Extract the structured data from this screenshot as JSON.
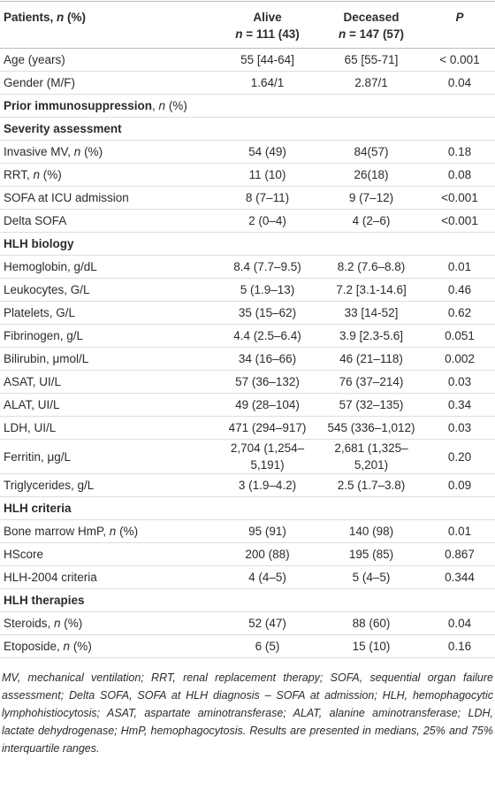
{
  "table": {
    "header": [
      [
        [
          {
            "t": "Patients, "
          },
          {
            "i": "n"
          },
          {
            "t": " (%)"
          }
        ]
      ],
      [
        "Alive",
        [
          {
            "i": "n"
          },
          {
            "t": " = 111 (43)"
          }
        ]
      ],
      [
        "Deceased",
        [
          {
            "i": "n"
          },
          {
            "t": " = 147 (57)"
          }
        ]
      ],
      [
        [
          {
            "i": "P"
          }
        ]
      ]
    ],
    "rows": [
      [
        "Age (years)",
        "55 [44-64]",
        "65 [55-71]",
        "< 0.001"
      ],
      [
        "Gender (M/F)",
        "1.64/1",
        "2.87/1",
        "0.04"
      ],
      [
        [
          {
            "b": "Prior immunosuppression"
          },
          {
            "t": ", "
          },
          {
            "i": "n"
          },
          {
            "t": " (%)"
          }
        ]
      ],
      [
        "Severity assessment"
      ],
      [
        [
          {
            "t": "Invasive MV, "
          },
          {
            "i": "n"
          },
          {
            "t": " (%)"
          }
        ],
        "54 (49)",
        "84(57)",
        "0.18"
      ],
      [
        [
          {
            "t": "RRT, "
          },
          {
            "i": "n"
          },
          {
            "t": " (%)"
          }
        ],
        "11 (10)",
        "26(18)",
        "0.08"
      ],
      [
        "SOFA at ICU admission",
        "8 (7–11)",
        "9 (7–12)",
        "<0.001"
      ],
      [
        "Delta SOFA",
        "2 (0–4)",
        "4 (2–6)",
        "<0.001"
      ],
      [
        "HLH biology"
      ],
      [
        "Hemoglobin, g/dL",
        "8.4 (7.7–9.5)",
        "8.2 (7.6–8.8)",
        "0.01"
      ],
      [
        "Leukocytes, G/L",
        "5 (1.9–13)",
        "7.2 [3.1-14.6]",
        "0.46"
      ],
      [
        "Platelets, G/L",
        "35 (15–62)",
        "33 [14-52]",
        "0.62"
      ],
      [
        "Fibrinogen, g/L",
        "4.4 (2.5–6.4)",
        "3.9 [2.3-5.6]",
        "0.051"
      ],
      [
        "Bilirubin, μmol/L",
        "34 (16–66)",
        "46 (21–118)",
        "0.002"
      ],
      [
        "ASAT, UI/L",
        "57 (36–132)",
        "76 (37–214)",
        "0.03"
      ],
      [
        "ALAT, UI/L",
        "49 (28–104)",
        "57 (32–135)",
        "0.34"
      ],
      [
        "LDH, UI/L",
        "471 (294–917)",
        "545 (336–1,012)",
        "0.03"
      ],
      [
        "Ferritin, μg/L",
        "2,704 (1,254–5,191)",
        "2,681 (1,325–5,201)",
        "0.20"
      ],
      [
        "Triglycerides, g/L",
        "3 (1.9–4.2)",
        "2.5 (1.7–3.8)",
        "0.09"
      ],
      [
        "HLH criteria"
      ],
      [
        [
          {
            "t": "Bone marrow HmP, "
          },
          {
            "i": "n"
          },
          {
            "t": " (%)"
          }
        ],
        "95 (91)",
        "140 (98)",
        "0.01"
      ],
      [
        "HScore",
        "200 (88)",
        "195 (85)",
        "0.867"
      ],
      [
        "HLH-2004 criteria",
        "4 (4–5)",
        "5 (4–5)",
        "0.344"
      ],
      [
        "HLH therapies"
      ],
      [
        [
          {
            "t": "Steroids, "
          },
          {
            "i": "n"
          },
          {
            "t": " (%)"
          }
        ],
        "52 (47)",
        "88 (60)",
        "0.04"
      ],
      [
        [
          {
            "t": "Etoposide, "
          },
          {
            "i": "n"
          },
          {
            "t": " (%)"
          }
        ],
        "6 (5)",
        "15 (10)",
        "0.16"
      ]
    ]
  },
  "footnote": "MV, mechanical ventilation; RRT, renal replacement therapy; SOFA, sequential organ failure assessment; Delta SOFA, SOFA at HLH diagnosis – SOFA at admission; HLH, hemophagocytic lymphohistiocytosis; ASAT, aspartate aminotransferase; ALAT, alanine aminotransferase; LDH, lactate dehydrogenase; HmP, hemophagocytosis. Results are presented in medians, 25% and 75% interquartile ranges."
}
